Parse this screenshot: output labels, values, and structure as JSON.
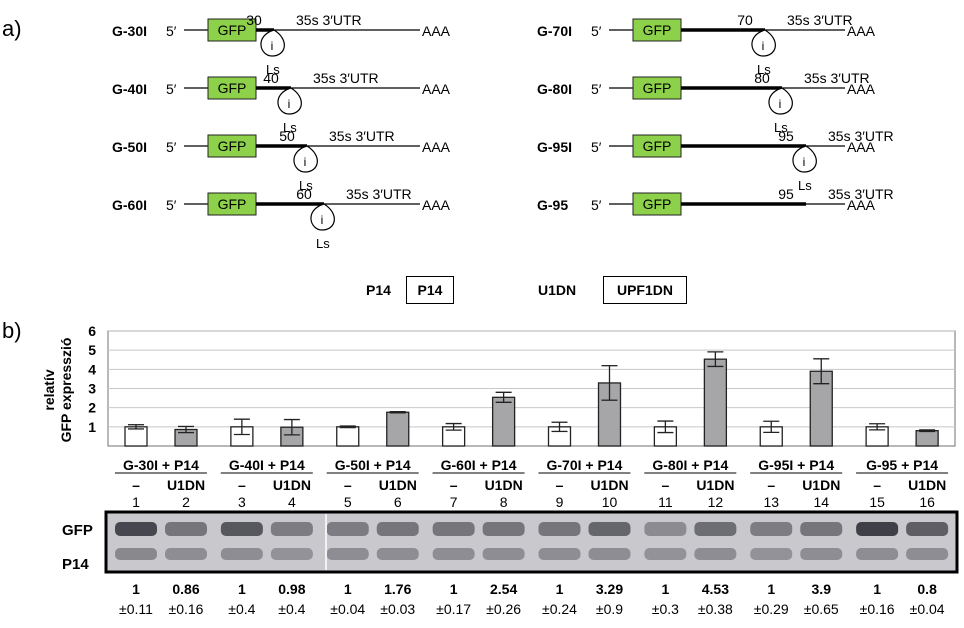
{
  "panel_a_label": "a)",
  "panel_b_label": "b)",
  "constructs": [
    {
      "name": "G-30I",
      "five_prime": "5′",
      "gfp": "GFP",
      "length": "30",
      "utr": "35s 3′UTR",
      "polya": "AAA",
      "intron": "i",
      "ls": "Ls",
      "has_intron": true
    },
    {
      "name": "G-40I",
      "five_prime": "5′",
      "gfp": "GFP",
      "length": "40",
      "utr": "35s 3′UTR",
      "polya": "AAA",
      "intron": "i",
      "ls": "Ls",
      "has_intron": true
    },
    {
      "name": "G-50I",
      "five_prime": "5′",
      "gfp": "GFP",
      "length": "50",
      "utr": "35s 3′UTR",
      "polya": "AAA",
      "intron": "i",
      "ls": "Ls",
      "has_intron": true
    },
    {
      "name": "G-60I",
      "five_prime": "5′",
      "gfp": "GFP",
      "length": "60",
      "utr": "35s 3′UTR",
      "polya": "AAA",
      "intron": "i",
      "ls": "Ls",
      "has_intron": true
    },
    {
      "name": "G-70I",
      "five_prime": "5′",
      "gfp": "GFP",
      "length": "70",
      "utr": "35s 3′UTR",
      "polya": "AAA",
      "intron": "i",
      "ls": "Ls",
      "has_intron": true
    },
    {
      "name": "G-80I",
      "five_prime": "5′",
      "gfp": "GFP",
      "length": "80",
      "utr": "35s 3′UTR",
      "polya": "AAA",
      "intron": "i",
      "ls": "Ls",
      "has_intron": true
    },
    {
      "name": "G-95I",
      "five_prime": "5′",
      "gfp": "GFP",
      "length": "95",
      "utr": "35s 3′UTR",
      "polya": "AAA",
      "intron": "i",
      "ls": "Ls",
      "has_intron": true
    },
    {
      "name": "G-95",
      "five_prime": "5′",
      "gfp": "GFP",
      "length": "95",
      "utr": "35s 3′UTR",
      "polya": "AAA",
      "intron": "",
      "ls": "",
      "has_intron": false
    }
  ],
  "legend": {
    "p14_label": "P14",
    "p14_box": "P14",
    "u1dn_label": "U1DN",
    "u1dn_box": "UPF1DN"
  },
  "colors": {
    "gfp_box": "#8dd14a",
    "bar_control": "#ffffff",
    "bar_treated": "#a6a6a8",
    "grid": "#c8c8c8",
    "gel_bg": "#c9c9cd"
  },
  "chart_data": {
    "type": "bar",
    "ylabel_line1": "relatív",
    "ylabel_line2": "GFP expresszió",
    "ylim": [
      0,
      6
    ],
    "yticks": [
      "1",
      "2",
      "3",
      "4",
      "5",
      "6"
    ],
    "grid": true,
    "groups": [
      "G-30I + P14",
      "G-40I + P14",
      "G-50I + P14",
      "G-60I + P14",
      "G-70I + P14",
      "G-80I + P14",
      "G-95I + P14",
      "G-95 + P14"
    ],
    "treatments": [
      "–",
      "U1DN"
    ],
    "lanes": [
      "1",
      "2",
      "3",
      "4",
      "5",
      "6",
      "7",
      "8",
      "9",
      "10",
      "11",
      "12",
      "13",
      "14",
      "15",
      "16"
    ],
    "values": [
      1,
      0.86,
      1,
      0.98,
      1,
      1.76,
      1,
      2.54,
      1,
      3.29,
      1,
      4.53,
      1,
      3.9,
      1,
      0.8
    ],
    "errors": [
      0.11,
      0.16,
      0.4,
      0.4,
      0.04,
      0.03,
      0.17,
      0.26,
      0.24,
      0.9,
      0.3,
      0.38,
      0.29,
      0.65,
      0.16,
      0.04
    ],
    "value_labels": [
      "1",
      "0.86",
      "1",
      "0.98",
      "1",
      "1.76",
      "1",
      "2.54",
      "1",
      "3.29",
      "1",
      "4.53",
      "1",
      "3.9",
      "1",
      "0.8"
    ],
    "error_labels": [
      "±0.11",
      "±0.16",
      "±0.4",
      "±0.4",
      "±0.04",
      "±0.03",
      "±0.17",
      "±0.26",
      "±0.24",
      "±0.9",
      "±0.3",
      "±0.38",
      "±0.29",
      "±0.65",
      "±0.16",
      "±0.04"
    ]
  },
  "gel": {
    "gfp_label": "GFP",
    "p14_label": "P14",
    "gfp_intensity": [
      0.85,
      0.55,
      0.75,
      0.5,
      0.5,
      0.55,
      0.55,
      0.55,
      0.55,
      0.65,
      0.4,
      0.6,
      0.5,
      0.55,
      0.9,
      0.7
    ],
    "p14_intensity": [
      0.6,
      0.55,
      0.55,
      0.5,
      0.55,
      0.55,
      0.55,
      0.55,
      0.55,
      0.55,
      0.5,
      0.55,
      0.5,
      0.55,
      0.55,
      0.55
    ]
  }
}
